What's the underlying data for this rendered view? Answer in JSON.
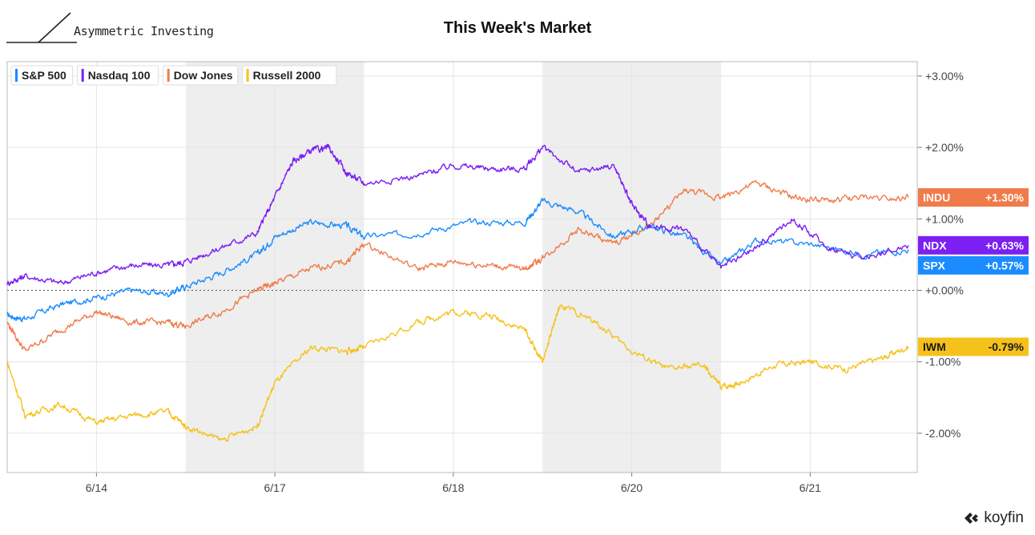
{
  "brand": {
    "name": "Asymmetric Investing"
  },
  "title": "This Week's Market",
  "footer": {
    "logo_text": "koyfin"
  },
  "chart_data": {
    "type": "line",
    "title": "This Week's Market",
    "xlabel": "",
    "ylabel": "",
    "x_ticks": [
      "6/14",
      "6/17",
      "6/18",
      "6/20",
      "6/21"
    ],
    "y_ticks": [
      "+3.00%",
      "+2.00%",
      "+1.00%",
      "+0.00%",
      "-1.00%",
      "-2.00%"
    ],
    "y_tick_values": [
      3,
      2,
      1,
      0,
      -1,
      -2
    ],
    "ylim": [
      -2.55,
      3.2
    ],
    "x_range": [
      0,
      5.1
    ],
    "grid": true,
    "legend_placement": "top-left",
    "shaded_days": [
      [
        1,
        2
      ],
      [
        3,
        4
      ]
    ],
    "series": [
      {
        "name": "S&P 500",
        "ticker": "SPX",
        "color": "#1a8cff",
        "last_label": "+0.57%",
        "x": [
          0,
          0.1,
          0.3,
          0.5,
          0.7,
          0.9,
          1.0,
          1.2,
          1.4,
          1.5,
          1.7,
          1.9,
          2.0,
          2.3,
          2.6,
          2.9,
          3.0,
          3.2,
          3.4,
          3.6,
          3.8,
          4.0,
          4.2,
          4.5,
          4.8,
          5.05
        ],
        "values": [
          -0.35,
          -0.4,
          -0.2,
          -0.1,
          0.0,
          -0.05,
          0.05,
          0.25,
          0.5,
          0.75,
          0.95,
          0.9,
          0.75,
          0.8,
          0.95,
          0.95,
          1.25,
          1.1,
          0.75,
          0.9,
          0.75,
          0.35,
          0.7,
          0.65,
          0.5,
          0.57
        ]
      },
      {
        "name": "Nasdaq 100",
        "ticker": "NDX",
        "color": "#7b1ff2",
        "last_label": "+0.63%",
        "x": [
          0,
          0.1,
          0.3,
          0.5,
          0.7,
          0.9,
          1.0,
          1.2,
          1.4,
          1.5,
          1.6,
          1.7,
          1.8,
          1.9,
          2.0,
          2.3,
          2.5,
          2.7,
          2.9,
          3.0,
          3.2,
          3.4,
          3.5,
          3.6,
          3.8,
          4.0,
          4.2,
          4.4,
          4.6,
          4.8,
          5.05
        ],
        "values": [
          0.1,
          0.2,
          0.1,
          0.25,
          0.35,
          0.35,
          0.4,
          0.6,
          0.8,
          1.3,
          1.8,
          1.95,
          2.0,
          1.65,
          1.5,
          1.6,
          1.75,
          1.7,
          1.7,
          2.0,
          1.65,
          1.75,
          1.2,
          0.9,
          0.85,
          0.3,
          0.6,
          1.0,
          0.6,
          0.45,
          0.63
        ]
      },
      {
        "name": "Dow Jones",
        "ticker": "INDU",
        "color": "#f07b4a",
        "last_label": "+1.30%",
        "x": [
          0,
          0.1,
          0.3,
          0.5,
          0.7,
          0.9,
          1.0,
          1.2,
          1.4,
          1.5,
          1.7,
          1.9,
          2.0,
          2.3,
          2.5,
          2.7,
          2.9,
          3.0,
          3.2,
          3.4,
          3.6,
          3.8,
          4.0,
          4.2,
          4.4,
          4.6,
          4.8,
          5.05
        ],
        "values": [
          -0.45,
          -0.85,
          -0.55,
          -0.3,
          -0.45,
          -0.45,
          -0.5,
          -0.3,
          0.0,
          0.1,
          0.3,
          0.4,
          0.65,
          0.3,
          0.4,
          0.35,
          0.3,
          0.45,
          0.85,
          0.65,
          0.9,
          1.4,
          1.3,
          1.5,
          1.3,
          1.25,
          1.3,
          1.3
        ]
      },
      {
        "name": "Russell 2000",
        "ticker": "IWM",
        "color": "#f5c21b",
        "last_label": "-0.79%",
        "x": [
          0,
          0.1,
          0.3,
          0.5,
          0.7,
          0.9,
          1.0,
          1.2,
          1.4,
          1.5,
          1.7,
          1.9,
          2.0,
          2.3,
          2.5,
          2.7,
          2.9,
          3.0,
          3.1,
          3.3,
          3.5,
          3.7,
          3.9,
          4.0,
          4.1,
          4.3,
          4.5,
          4.7,
          4.9,
          5.05
        ],
        "values": [
          -1.0,
          -1.75,
          -1.6,
          -1.85,
          -1.75,
          -1.7,
          -1.9,
          -2.1,
          -1.9,
          -1.3,
          -0.8,
          -0.85,
          -0.8,
          -0.45,
          -0.3,
          -0.35,
          -0.55,
          -1.0,
          -0.2,
          -0.45,
          -0.85,
          -1.1,
          -1.05,
          -1.35,
          -1.3,
          -1.05,
          -1.0,
          -1.1,
          -0.95,
          -0.79
        ]
      }
    ]
  }
}
